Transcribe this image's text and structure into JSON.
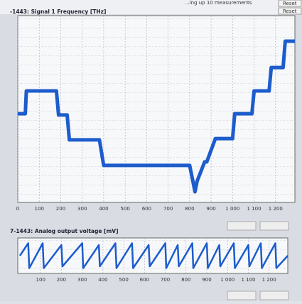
{
  "header": {
    "status": "...ing up 10 measurements",
    "buttons": [
      "Reset",
      "Reset"
    ]
  },
  "chart_data": [
    {
      "type": "line",
      "title": "-1443: Signal 1  Frequency  [THz]",
      "x": [
        0,
        35,
        40,
        180,
        190,
        230,
        240,
        380,
        400,
        800,
        815,
        825,
        835,
        870,
        880,
        920,
        940,
        1000,
        1010,
        1090,
        1100,
        1170,
        1180,
        1235,
        1245,
        1290
      ],
      "series": [
        {
          "color": "#1c5ccc",
          "values": [
            47.5,
            47.5,
            59.7,
            59.7,
            46.8,
            46.8,
            33.5,
            33.5,
            19.8,
            19.8,
            11.4,
            5.7,
            11.4,
            21.7,
            21.7,
            34.2,
            34.2,
            34.2,
            47.5,
            47.5,
            59.7,
            59.7,
            72.2,
            72.2,
            86.3,
            86.3
          ]
        }
      ],
      "xlim": [
        0,
        1290
      ],
      "ylim": [
        0,
        100
      ],
      "xticks": [
        0,
        100,
        200,
        300,
        400,
        500,
        600,
        700,
        800,
        900,
        {
          "value": 1000,
          "label": "1 000"
        },
        {
          "value": 1100,
          "label": "1 100"
        },
        {
          "value": 1200,
          "label": "1 200"
        }
      ],
      "grid": true
    },
    {
      "type": "line",
      "title": "7-1443: Analog output voltage  [mV]",
      "x": [
        0,
        40,
        45,
        110,
        115,
        200,
        205,
        300,
        305,
        380,
        385,
        460,
        465,
        540,
        545,
        620,
        625,
        700,
        705,
        760,
        765,
        830,
        835,
        900,
        905,
        960,
        965,
        1030,
        1035,
        1100,
        1105,
        1160,
        1165,
        1230,
        1235,
        1290
      ],
      "series": [
        {
          "color": "#1c5ccc",
          "values": [
            50,
            85,
            15,
            85,
            15,
            80,
            20,
            85,
            15,
            80,
            20,
            85,
            15,
            85,
            15,
            80,
            20,
            85,
            15,
            80,
            20,
            85,
            15,
            85,
            15,
            80,
            20,
            85,
            15,
            80,
            20,
            85,
            15,
            85,
            15,
            50
          ]
        }
      ],
      "xlim": [
        0,
        1290
      ],
      "ylim": [
        0,
        100
      ],
      "xticks": [
        100,
        200,
        300,
        400,
        500,
        600,
        700,
        800,
        900,
        {
          "value": 1000,
          "label": "1 000"
        },
        {
          "value": 1100,
          "label": "1 100"
        },
        {
          "value": 1200,
          "label": "1 200"
        }
      ],
      "grid": true
    }
  ]
}
